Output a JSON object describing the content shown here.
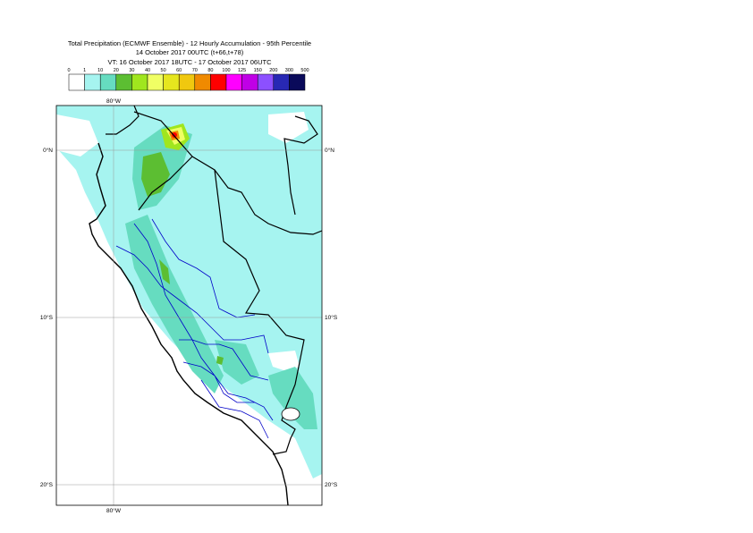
{
  "titles": {
    "line1": "Total Precipitation (ECMWF Ensemble) - 12 Hourly Accumulation - 95th Percentile",
    "line2": "14 October 2017 00UTC (t+66,t+78)",
    "line3": "VT: 16 October 2017 18UTC - 17 October 2017 06UTC"
  },
  "legend": {
    "ticks": [
      "0",
      "1",
      "10",
      "20",
      "30",
      "40",
      "50",
      "60",
      "70",
      "80",
      "100",
      "125",
      "150",
      "200",
      "300",
      "500"
    ],
    "colors": [
      "#ffffff",
      "#a6f4f0",
      "#66dcc0",
      "#5cbe32",
      "#a0e61e",
      "#f0ff64",
      "#e6e61e",
      "#f0c80f",
      "#f08a00",
      "#ff0000",
      "#ff00ff",
      "#c000e6",
      "#8c50ff",
      "#2828b4",
      "#0a0a5a"
    ]
  },
  "map": {
    "lon_labels": {
      "top": "80°W",
      "bottom": "80°W"
    },
    "lat_labels": [
      {
        "lat": 0,
        "left": "0°N",
        "right": "0°N"
      },
      {
        "lat": -10,
        "left": "10°S",
        "right": "10°S"
      },
      {
        "lat": -20,
        "left": "20°S",
        "right": "20°S"
      }
    ],
    "colors": {
      "ocean_precip": "#a6f4f0",
      "border_black": "#000000",
      "border_blue": "#0000c8",
      "grid": "#999999"
    }
  }
}
